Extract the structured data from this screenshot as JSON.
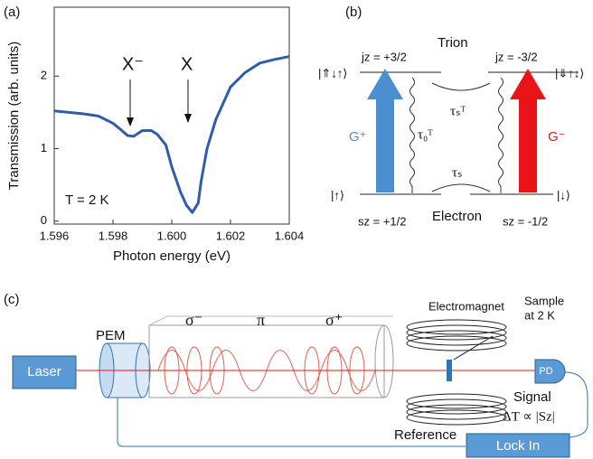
{
  "panel_labels": [
    "(a)",
    "(b)",
    "(c)"
  ],
  "chart_data": {
    "type": "line",
    "x_label": "Photon energy (eV)",
    "y_label": "Transmission (arb. units)",
    "x": [
      1.596,
      1.5965,
      1.597,
      1.5975,
      1.598,
      1.5983,
      1.5985,
      1.5987,
      1.599,
      1.5993,
      1.5995,
      1.5998,
      1.6,
      1.6003,
      1.6005,
      1.6007,
      1.6009,
      1.601,
      1.6012,
      1.6015,
      1.602,
      1.6025,
      1.603,
      1.6035,
      1.604
    ],
    "series": [
      {
        "color": "#2f5ea8",
        "values": [
          1.52,
          1.5,
          1.48,
          1.45,
          1.35,
          1.25,
          1.18,
          1.17,
          1.25,
          1.25,
          1.2,
          1.05,
          0.75,
          0.4,
          0.22,
          0.12,
          0.25,
          0.55,
          1.0,
          1.4,
          1.85,
          2.05,
          2.18,
          2.23,
          2.27
        ]
      }
    ],
    "xlim": [
      1.596,
      1.604
    ],
    "xticks": [
      1.596,
      1.598,
      {
        "value": 1.6,
        "label": "1.600"
      },
      1.602,
      1.604
    ],
    "ylim": [
      -0.04,
      2.95
    ],
    "yticks": [
      0,
      1,
      2
    ],
    "annotations": [
      "X⁻",
      "X",
      "T = 2 K"
    ]
  },
  "diagram_b": {
    "jz_up": "jz = +3/2",
    "trion": "Trion",
    "jz_down": "jz = -3/2",
    "trion_left": "|⇑↓↑⟩",
    "trion_right": "|⇓↑↓⟩",
    "g_plus": "G⁺",
    "g_minus": "G⁻",
    "tau0T": "τ₀ᵀ",
    "tausT": "τₛᵀ",
    "taus": "τₛ",
    "el_left": "|↑⟩",
    "el_right": "|↓⟩",
    "sz_up": "sz = +1/2",
    "electron": "Electron",
    "sz_down": "sz = -1/2"
  },
  "diagram_c": {
    "laser": "Laser",
    "pem": "PEM",
    "sigma_minus": "σ⁻",
    "pi": "π",
    "sigma_plus": "σ⁺",
    "electromagnet": "Electromagnet",
    "sample": [
      "Sample",
      "at 2 K"
    ],
    "pd": "PD",
    "signal": "Signal",
    "signal_formula": "ΔT ∝ |Sz|",
    "reference": "Reference",
    "lock_in": "Lock In"
  }
}
